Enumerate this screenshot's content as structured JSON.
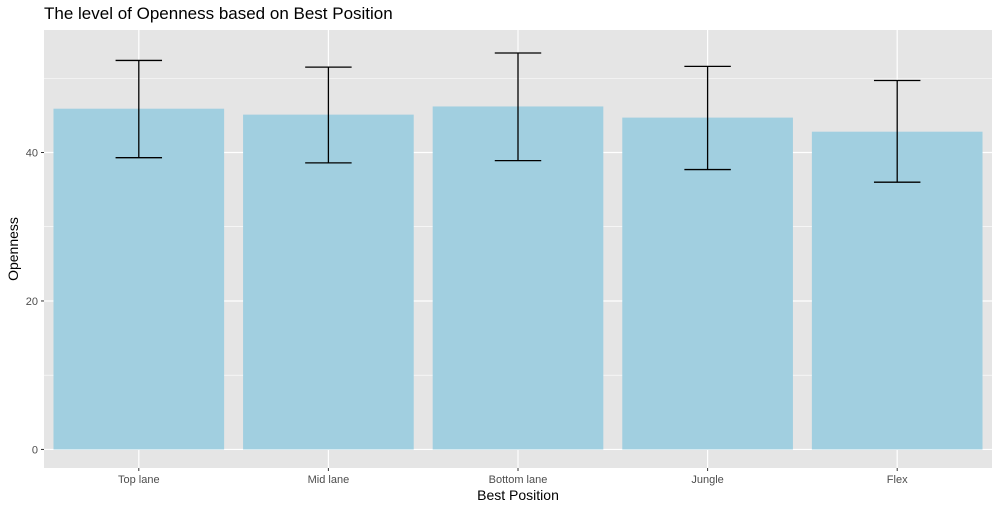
{
  "chart_data": {
    "type": "bar",
    "title": "The level of Openness based on Best Position",
    "xlabel": "Best Position",
    "ylabel": "Openness",
    "categories": [
      "Top lane",
      "Mid lane",
      "Bottom lane",
      "Jungle",
      "Flex"
    ],
    "values": [
      45.9,
      45.1,
      46.2,
      44.7,
      42.8
    ],
    "error_upper": [
      52.4,
      51.5,
      53.4,
      51.6,
      49.7
    ],
    "error_lower": [
      39.3,
      38.6,
      38.9,
      37.7,
      36.0
    ],
    "ylim": [
      -2.5,
      56.5
    ],
    "yticks": [
      0,
      20,
      40
    ],
    "grid": true,
    "bar_color": "#a1cfe0",
    "panel_color": "#e5e5e5",
    "error_bar_color": "#000000"
  }
}
